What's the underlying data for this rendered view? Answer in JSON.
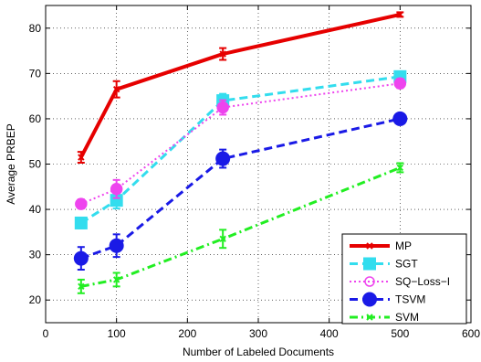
{
  "chart_data": {
    "type": "line",
    "title": "",
    "xlabel": "Number of Labeled Documents",
    "ylabel": "Average PRBEP",
    "xlim": [
      0,
      600
    ],
    "ylim": [
      15,
      85
    ],
    "xticks": [
      0,
      100,
      200,
      300,
      400,
      500,
      600
    ],
    "yticks": [
      20,
      30,
      40,
      50,
      60,
      70,
      80
    ],
    "grid": true,
    "legend_position": "bottom-right",
    "x": [
      50,
      100,
      250,
      500
    ],
    "series": [
      {
        "name": "MP",
        "values": [
          51.5,
          66.5,
          74.3,
          83.0
        ],
        "err": [
          1.2,
          1.8,
          1.3,
          0.5
        ],
        "color": "#e60000",
        "dash": "solid",
        "marker": "x",
        "width": 4
      },
      {
        "name": "SGT",
        "values": [
          37.0,
          42.0,
          64.0,
          69.3
        ],
        "err": [
          1.2,
          1.8,
          1.5,
          1.0
        ],
        "color": "#33ddee",
        "dash": "dashed",
        "marker": "square",
        "width": 3
      },
      {
        "name": "SQ−Loss−I",
        "values": [
          41.2,
          44.5,
          62.5,
          67.8
        ],
        "err": [
          1.0,
          2.0,
          1.6,
          1.0
        ],
        "color": "#ee44ee",
        "dash": "dotted",
        "marker": "circle-open",
        "width": 2
      },
      {
        "name": "TSVM",
        "values": [
          29.2,
          32.0,
          51.2,
          60.0
        ],
        "err": [
          2.5,
          2.5,
          2.0,
          1.0
        ],
        "color": "#1a1ae6",
        "dash": "dashed",
        "marker": "circle",
        "width": 3
      },
      {
        "name": "SVM",
        "values": [
          23.0,
          24.5,
          33.5,
          49.2
        ],
        "err": [
          1.5,
          1.5,
          2.0,
          1.0
        ],
        "color": "#22ee22",
        "dash": "dashdot",
        "marker": "x",
        "width": 3
      }
    ]
  }
}
